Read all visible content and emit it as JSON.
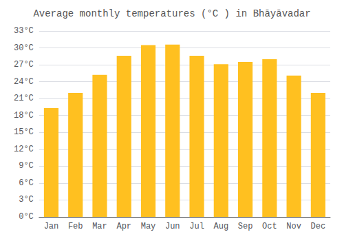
{
  "chart_data": {
    "type": "bar",
    "title": "Average monthly temperatures (°C ) in Bhāyāvadar",
    "categories": [
      "Jan",
      "Feb",
      "Mar",
      "Apr",
      "May",
      "Jun",
      "Jul",
      "Aug",
      "Sep",
      "Oct",
      "Nov",
      "Dec"
    ],
    "values": [
      19.3,
      22.0,
      25.2,
      28.6,
      30.5,
      30.6,
      28.6,
      27.1,
      27.5,
      28.0,
      25.1,
      22.0
    ],
    "color": "#FFC020",
    "ylim": [
      0,
      33
    ],
    "yticks": [
      {
        "value": 0,
        "label": "0°C"
      },
      {
        "value": 3,
        "label": "3°C"
      },
      {
        "value": 6,
        "label": "6°C"
      },
      {
        "value": 9,
        "label": "9°C"
      },
      {
        "value": 12,
        "label": "12°C"
      },
      {
        "value": 15,
        "label": "15°C"
      },
      {
        "value": 18,
        "label": "18°C"
      },
      {
        "value": 21,
        "label": "21°C"
      },
      {
        "value": 24,
        "label": "24°C"
      },
      {
        "value": 27,
        "label": "27°C"
      },
      {
        "value": 30,
        "label": "30°C"
      },
      {
        "value": 33,
        "label": "33°C"
      }
    ],
    "grid": true
  }
}
